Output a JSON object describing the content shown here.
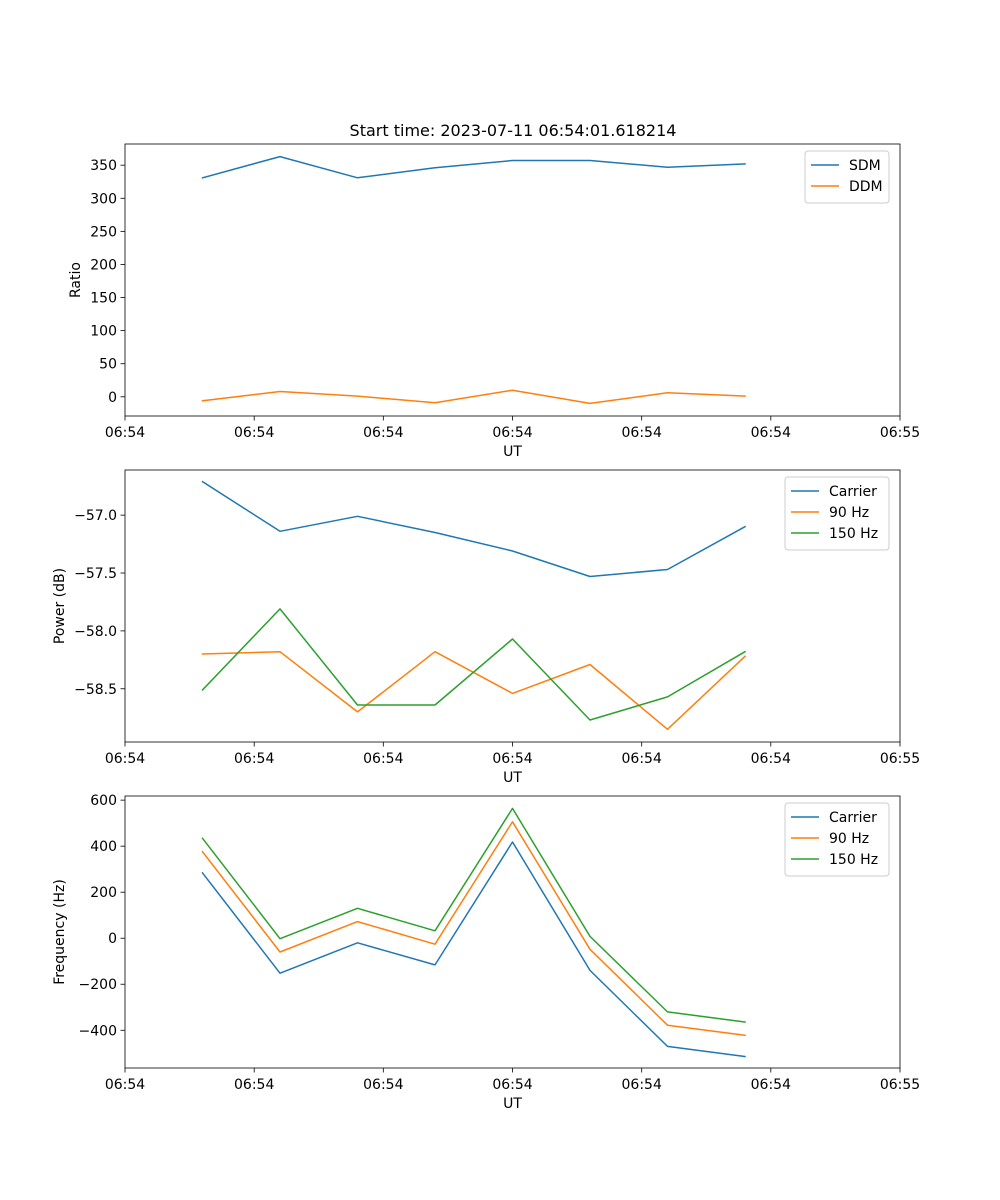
{
  "chart_data": [
    {
      "type": "line",
      "title": "Start time: 2023-07-11 06:54:01.618214",
      "xlabel": "UT",
      "ylabel": "Ratio",
      "x": [
        1,
        2,
        3,
        4,
        5,
        6,
        7,
        8
      ],
      "xlim": [
        0,
        10
      ],
      "xtick_values": [
        0,
        1.667,
        3.333,
        5,
        6.667,
        8.333,
        10
      ],
      "xtick_labels": [
        "06:54",
        "06:54",
        "06:54",
        "06:54",
        "06:54",
        "06:54",
        "06:55"
      ],
      "ylim": [
        -29,
        382
      ],
      "yticks": [
        0,
        50,
        100,
        150,
        200,
        250,
        300,
        350
      ],
      "legend_loc": "top-right",
      "series": [
        {
          "name": "SDM",
          "color": "#1f77b4",
          "values": [
            331,
            363,
            331,
            346,
            357,
            357,
            347,
            352
          ]
        },
        {
          "name": "DDM",
          "color": "#ff7f0e",
          "values": [
            -6,
            8,
            1,
            -9,
            10,
            -10,
            6,
            1
          ]
        }
      ]
    },
    {
      "type": "line",
      "title": "",
      "xlabel": "UT",
      "ylabel": "Power (dB)",
      "x": [
        1,
        2,
        3,
        4,
        5,
        6,
        7,
        8
      ],
      "xlim": [
        0,
        10
      ],
      "xtick_values": [
        0,
        1.667,
        3.333,
        5,
        6.667,
        8.333,
        10
      ],
      "xtick_labels": [
        "06:54",
        "06:54",
        "06:54",
        "06:54",
        "06:54",
        "06:54",
        "06:55"
      ],
      "ylim": [
        -58.96,
        -56.61
      ],
      "yticks": [
        -58.5,
        -58.0,
        -57.5,
        -57.0
      ],
      "ytick_labels": [
        "−58.5",
        "−58.0",
        "−57.5",
        "−57.0"
      ],
      "legend_loc": "top-right",
      "series": [
        {
          "name": "Carrier",
          "color": "#1f77b4",
          "values": [
            -56.71,
            -57.14,
            -57.01,
            -57.15,
            -57.31,
            -57.53,
            -57.47,
            -57.1
          ]
        },
        {
          "name": "90 Hz",
          "color": "#ff7f0e",
          "values": [
            -58.2,
            -58.18,
            -58.7,
            -58.18,
            -58.54,
            -58.29,
            -58.85,
            -58.22
          ]
        },
        {
          "name": "150 Hz",
          "color": "#2ca02c",
          "values": [
            -58.51,
            -57.81,
            -58.64,
            -58.64,
            -58.07,
            -58.77,
            -58.57,
            -58.18
          ]
        }
      ]
    },
    {
      "type": "line",
      "title": "",
      "xlabel": "UT",
      "ylabel": "Frequency (Hz)",
      "x": [
        1,
        2,
        3,
        4,
        5,
        6,
        7,
        8
      ],
      "xlim": [
        0,
        10
      ],
      "xtick_values": [
        0,
        1.667,
        3.333,
        5,
        6.667,
        8.333,
        10
      ],
      "xtick_labels": [
        "06:54",
        "06:54",
        "06:54",
        "06:54",
        "06:54",
        "06:54",
        "06:55"
      ],
      "ylim": [
        -564,
        618
      ],
      "yticks": [
        -400,
        -200,
        0,
        200,
        400,
        600
      ],
      "ytick_labels": [
        "−400",
        "−200",
        "0",
        "200",
        "400",
        "600"
      ],
      "legend_loc": "top-right",
      "series": [
        {
          "name": "Carrier",
          "color": "#1f77b4",
          "values": [
            284,
            -152,
            -20,
            -116,
            418,
            -140,
            -470,
            -514
          ]
        },
        {
          "name": "90 Hz",
          "color": "#ff7f0e",
          "values": [
            376,
            -60,
            72,
            -26,
            506,
            -48,
            -378,
            -422
          ]
        },
        {
          "name": "150 Hz",
          "color": "#2ca02c",
          "values": [
            434,
            -2,
            130,
            32,
            564,
            8,
            -320,
            -364
          ]
        }
      ]
    }
  ]
}
